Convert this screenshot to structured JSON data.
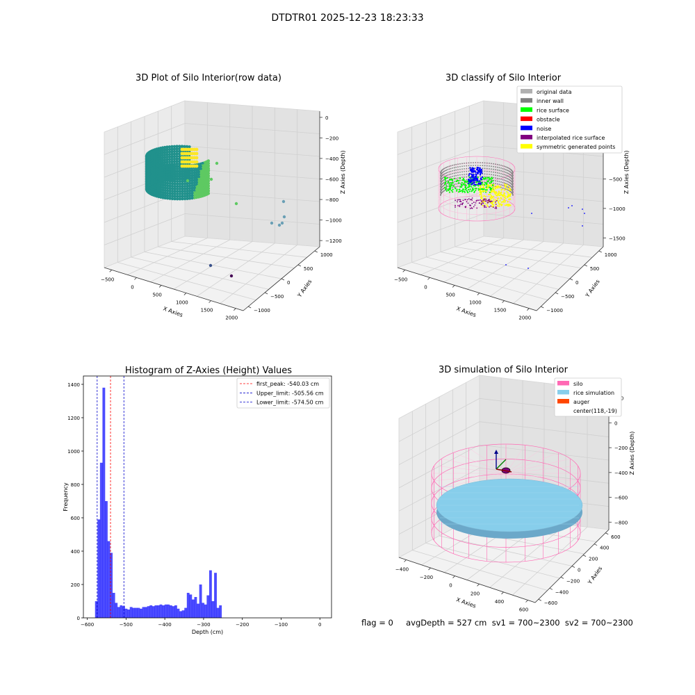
{
  "suptitle": "DTDTR01 2025-12-23 18:23:33",
  "footer_text": "flag = 0     avgDepth = 527 cm  sv1 = 700~2300  sv2 = 700~2300",
  "colors": {
    "viridis": [
      "#440154",
      "#3b528b",
      "#21918c",
      "#5ec962",
      "#fde725"
    ],
    "hist_bar": "#0000ff",
    "first_peak_line": "#ff0000",
    "limit_line": "#0000cc",
    "silo_wire": "#ff69b4",
    "rice_sim": "#87ceeb",
    "auger": "#ff4500"
  },
  "plot1": {
    "title": "3D Plot of Silo Interior(row data)",
    "xlabel": "X Axies",
    "ylabel": "Y Axies",
    "zlabel": "Z Axies (Depth)",
    "xticks": [
      "−500",
      "0",
      "500",
      "1000",
      "1500",
      "2000"
    ],
    "yticks": [
      "−1000",
      "−500",
      "0",
      "500",
      "1000"
    ],
    "zticks": [
      "0",
      "−200",
      "−400",
      "−600",
      "−800",
      "−1000",
      "−1200"
    ]
  },
  "plot2": {
    "title": "3D classify of Silo Interior",
    "xlabel": "X Axies",
    "ylabel": "Y Axies",
    "zlabel": "Z Axies (Depth)",
    "xticks": [
      "−500",
      "0",
      "500",
      "1000",
      "1500",
      "2000"
    ],
    "yticks": [
      "−1000",
      "−500",
      "0",
      "500",
      "1000"
    ],
    "zticks": [
      "500",
      "0",
      "−500",
      "−1000",
      "−1500"
    ],
    "legend": [
      {
        "label": "original data",
        "color": "#b0b0b0"
      },
      {
        "label": "inner wall",
        "color": "#808080"
      },
      {
        "label": "rice surface",
        "color": "#00ff00"
      },
      {
        "label": "obstacle",
        "color": "#ff0000"
      },
      {
        "label": "noise",
        "color": "#0000ff"
      },
      {
        "label": "interpolated rice surface",
        "color": "#800080"
      },
      {
        "label": "symmetric generated points",
        "color": "#ffff00"
      }
    ]
  },
  "plot4": {
    "title": "3D simulation of Silo Interior",
    "xlabel": "X Axies",
    "ylabel": "Y Axies",
    "zlabel": "Z Axies (Depth)",
    "xticks": [
      "−400",
      "−200",
      "0",
      "200",
      "400",
      "600"
    ],
    "yticks": [
      "−600",
      "−400",
      "−200",
      "0",
      "200",
      "400",
      "600"
    ],
    "zticks": [
      "200",
      "0",
      "−200",
      "−400",
      "−600",
      "−800"
    ],
    "legend": [
      {
        "label": "silo",
        "color": "#ff69b4"
      },
      {
        "label": "rice simulation",
        "color": "#87ceeb"
      },
      {
        "label": "auger",
        "color": "#ff4500"
      },
      {
        "label": "center(118,-19)",
        "color": ""
      }
    ]
  },
  "chart_data": [
    {
      "type": "bar",
      "title": "Histogram of Z-Axies (Height) Values",
      "xlabel": "Depth (cm)",
      "ylabel": "Frequency",
      "xlim": [
        -610,
        30
      ],
      "ylim": [
        0,
        1450
      ],
      "xticks": [
        -600,
        -500,
        -400,
        -300,
        -200,
        -100,
        0
      ],
      "xtick_labels": [
        "−600",
        "−500",
        "−400",
        "−300",
        "−200",
        "−100",
        "0"
      ],
      "yticks": [
        0,
        200,
        400,
        600,
        800,
        1000,
        1200,
        1400
      ],
      "bin_start": -580,
      "bin_width": 6.4,
      "values": [
        100,
        590,
        930,
        1380,
        700,
        460,
        390,
        150,
        90,
        65,
        75,
        70,
        55,
        50,
        65,
        60,
        60,
        60,
        55,
        65,
        65,
        70,
        75,
        70,
        75,
        75,
        80,
        75,
        80,
        80,
        75,
        70,
        75,
        55,
        40,
        45,
        60,
        150,
        140,
        110,
        125,
        85,
        200,
        90,
        80,
        135,
        285,
        100,
        270,
        60,
        75
      ],
      "legend_position": "upper right",
      "legend": [
        {
          "label": "first_peak: -540.03 cm",
          "color": "#ff0000",
          "x": -540.03
        },
        {
          "label": "Upper_limit: -505.56 cm",
          "color": "#0000cc",
          "x": -505.56
        },
        {
          "label": "Lower_limit: -574.50 cm",
          "color": "#0000cc",
          "x": -574.5
        }
      ]
    }
  ]
}
